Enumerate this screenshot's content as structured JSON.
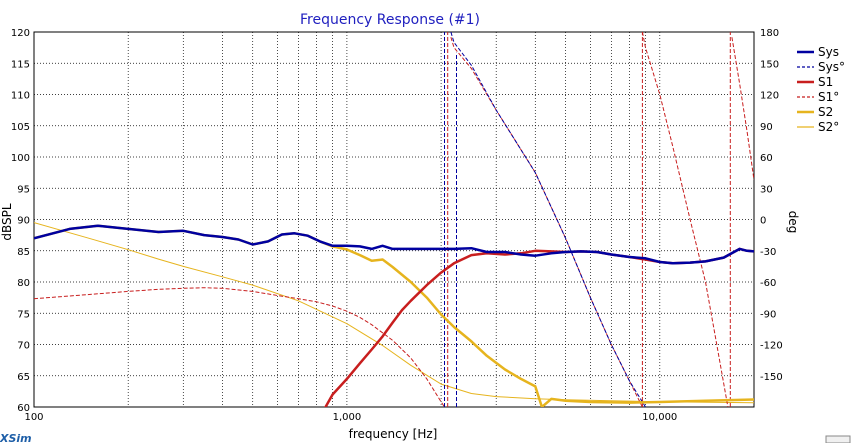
{
  "window": {
    "brand": "XSim"
  },
  "chart_data": {
    "type": "line",
    "title": "Frequency Response (#1)",
    "xlabel": "frequency [Hz]",
    "ylabel": "dBSPL",
    "y2label": "deg",
    "xscale": "log",
    "xlim": [
      100,
      20000
    ],
    "ylim": [
      60,
      120
    ],
    "y2lim": [
      -180,
      180
    ],
    "x_tick_labels": [
      "100",
      "1,000",
      "10,000"
    ],
    "x_tick_values": [
      100,
      1000,
      10000
    ],
    "y_ticks": [
      60,
      65,
      70,
      75,
      80,
      85,
      90,
      95,
      100,
      105,
      110,
      115,
      120
    ],
    "y2_ticks": [
      -150,
      -120,
      -90,
      -60,
      -30,
      0,
      30,
      60,
      90,
      120,
      150,
      180
    ],
    "grid": true,
    "legend_position": "right",
    "colors": {
      "Sys": "#0000a0",
      "S1": "#c81e1e",
      "S2": "#e6b41e"
    },
    "series": [
      {
        "name": "Sys",
        "axis": "y",
        "style": "solid",
        "color": "#0000a0",
        "x": [
          100,
          130,
          160,
          200,
          250,
          300,
          350,
          400,
          450,
          500,
          560,
          620,
          680,
          750,
          820,
          900,
          1000,
          1100,
          1200,
          1300,
          1400,
          1600,
          1800,
          2000,
          2200,
          2500,
          2800,
          3200,
          3600,
          4000,
          4500,
          5000,
          5600,
          6300,
          7000,
          8000,
          9000,
          10000,
          11000,
          12500,
          14000,
          16000,
          18000,
          19000,
          20000
        ],
        "values": [
          87.0,
          88.5,
          89.0,
          88.5,
          88.0,
          88.2,
          87.5,
          87.2,
          86.8,
          86.0,
          86.5,
          87.6,
          87.8,
          87.4,
          86.5,
          85.8,
          85.8,
          85.7,
          85.3,
          85.8,
          85.3,
          85.3,
          85.3,
          85.3,
          85.3,
          85.4,
          84.8,
          84.8,
          84.4,
          84.2,
          84.6,
          84.8,
          84.9,
          84.8,
          84.4,
          84.0,
          83.8,
          83.2,
          83.0,
          83.1,
          83.3,
          83.9,
          85.3,
          85.0,
          84.9
        ]
      },
      {
        "name": "Sys°",
        "axis": "y2",
        "style": "dashed",
        "color": "#0000a0",
        "segments": [
          {
            "x": [
              2050,
              2050
            ],
            "values": [
              -180,
              180
            ]
          },
          {
            "x": [
              2150,
              2200,
              2500,
              3000,
              4000,
              5000,
              6000,
              7000,
              8000,
              9000
            ],
            "values": [
              180,
              170,
              148,
              105,
              45,
              -18,
              -75,
              -120,
              -155,
              -180
            ]
          },
          {
            "x": [
              2240,
              2240
            ],
            "values": [
              -180,
              160
            ]
          }
        ]
      },
      {
        "name": "S1",
        "axis": "y",
        "style": "solid",
        "color": "#c81e1e",
        "x": [
          850,
          900,
          1000,
          1100,
          1200,
          1300,
          1400,
          1500,
          1600,
          1800,
          2000,
          2200,
          2500,
          2800,
          3200,
          3600,
          4000,
          4500,
          5000,
          5600,
          6300,
          7000,
          8000,
          9000,
          10000,
          11000,
          12500,
          14000,
          16000,
          18000,
          19000,
          20000
        ],
        "values": [
          59.8,
          62.0,
          64.5,
          67.0,
          69.2,
          71.3,
          73.5,
          75.5,
          77.0,
          79.5,
          81.5,
          83.0,
          84.3,
          84.6,
          84.4,
          84.6,
          85.0,
          84.9,
          84.8,
          84.9,
          84.8,
          84.4,
          84.0,
          83.6,
          83.2,
          83.0,
          83.1,
          83.3,
          83.9,
          85.3,
          85.0,
          84.9
        ]
      },
      {
        "name": "S1°",
        "axis": "y2",
        "style": "dashed",
        "color": "#c81e1e",
        "segments": [
          {
            "x": [
              100,
              150,
              200,
              250,
              300,
              350,
              400,
              500,
              600,
              700,
              800,
              900,
              1000,
              1100,
              1200,
              1400,
              1600,
              1800,
              2000,
              2050
            ],
            "values": [
              -76,
              -72,
              -69,
              -67,
              -66,
              -65.5,
              -66,
              -69,
              -73,
              -76,
              -79,
              -83,
              -88,
              -94,
              -101,
              -116,
              -133,
              -153,
              -175,
              -180
            ]
          },
          {
            "x": [
              2100,
              2100
            ],
            "values": [
              -180,
              180
            ]
          },
          {
            "x": [
              2150,
              2200,
              2500,
              3000,
              4000,
              5000,
              6000,
              7000,
              8000,
              8800
            ],
            "values": [
              175,
              165,
              145,
              105,
              45,
              -18,
              -75,
              -120,
              -155,
              -180
            ]
          },
          {
            "x": [
              8800,
              8800
            ],
            "values": [
              -180,
              180
            ]
          },
          {
            "x": [
              8800,
              9000,
              10000,
              11000,
              12500,
              14000,
              15000,
              16500
            ],
            "values": [
              180,
              165,
              120,
              70,
              0,
              -60,
              -110,
              -180
            ]
          },
          {
            "x": [
              16800,
              16800
            ],
            "values": [
              -180,
              180
            ]
          },
          {
            "x": [
              17000,
              18000,
              19000,
              20000
            ],
            "values": [
              175,
              130,
              85,
              38
            ]
          }
        ]
      },
      {
        "name": "S2",
        "axis": "y",
        "style": "solid",
        "color": "#e6b41e",
        "x": [
          100,
          130,
          160,
          200,
          250,
          300,
          350,
          400,
          450,
          500,
          560,
          620,
          680,
          750,
          820,
          900,
          1000,
          1100,
          1200,
          1300,
          1400,
          1600,
          1800,
          2000,
          2200,
          2500,
          2800,
          3200,
          3600,
          4000,
          4200,
          4500,
          5000,
          6000,
          8000,
          10000,
          14000,
          20000
        ],
        "values": [
          87.0,
          88.5,
          89.0,
          88.5,
          88.0,
          88.2,
          87.5,
          87.2,
          86.8,
          86.0,
          86.5,
          87.6,
          87.8,
          87.4,
          86.5,
          85.7,
          85.2,
          84.3,
          83.4,
          83.6,
          82.4,
          80.0,
          77.5,
          74.8,
          72.8,
          70.5,
          68.2,
          66.0,
          64.5,
          63.3,
          60.0,
          61.3,
          61.0,
          60.8,
          60.7,
          60.8,
          61.0,
          61.2
        ]
      },
      {
        "name": "S2°",
        "axis": "y2",
        "style": "solid-thin",
        "color": "#e6b41e",
        "x": [
          100,
          150,
          200,
          250,
          300,
          400,
          500,
          700,
          1000,
          1300,
          1600,
          2000,
          2500,
          3000,
          4000,
          5000,
          7000,
          10000,
          20000
        ],
        "values": [
          -3,
          -18,
          -29,
          -38,
          -45,
          -55,
          -63,
          -78,
          -100,
          -121,
          -140,
          -158,
          -167,
          -170,
          -172,
          -173,
          -174,
          -175,
          -176
        ]
      }
    ],
    "legend": [
      {
        "name": "Sys",
        "color": "#0000a0",
        "style": "solid"
      },
      {
        "name": "Sys°",
        "color": "#0000a0",
        "style": "dashed"
      },
      {
        "name": "S1",
        "color": "#c81e1e",
        "style": "solid"
      },
      {
        "name": "S1°",
        "color": "#c81e1e",
        "style": "dashed"
      },
      {
        "name": "S2",
        "color": "#e6b41e",
        "style": "solid"
      },
      {
        "name": "S2°",
        "color": "#e6b41e",
        "style": "solid-thin"
      }
    ]
  }
}
